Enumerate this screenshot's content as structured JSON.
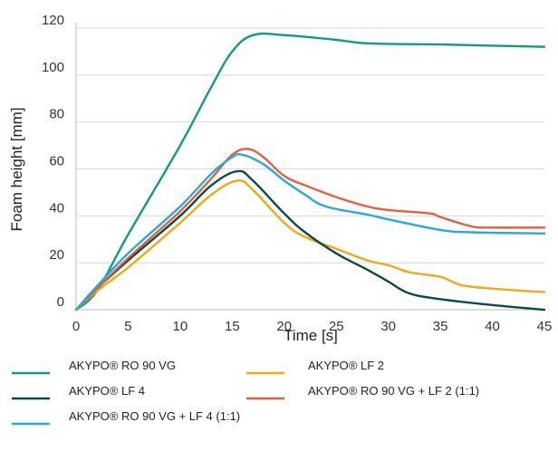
{
  "chart_data": {
    "type": "line",
    "title": "",
    "xlabel": "Time [s]",
    "ylabel": "Foam height [mm]",
    "xlim": [
      0,
      45
    ],
    "ylim": [
      0,
      120
    ],
    "x_ticks": [
      0,
      5,
      10,
      15,
      20,
      25,
      30,
      35,
      40,
      45
    ],
    "y_ticks": [
      0,
      20,
      40,
      60,
      80,
      100,
      120
    ],
    "grid": "horizontal",
    "legend_position": "bottom",
    "series": [
      {
        "name": "AKYPO® RO 90 VG",
        "color": "#129a83",
        "points": [
          [
            0,
            0
          ],
          [
            2,
            8
          ],
          [
            5,
            32
          ],
          [
            10,
            70
          ],
          [
            13,
            95
          ],
          [
            15,
            110
          ],
          [
            17,
            117
          ],
          [
            20,
            117
          ],
          [
            25,
            115
          ],
          [
            28,
            113.5
          ],
          [
            35,
            113
          ],
          [
            40,
            112.5
          ],
          [
            45,
            112
          ]
        ]
      },
      {
        "name": "AKYPO® LF 2",
        "color": "#f2a814",
        "points": [
          [
            0,
            0
          ],
          [
            2,
            8
          ],
          [
            5,
            18
          ],
          [
            10,
            37
          ],
          [
            13,
            49
          ],
          [
            15.5,
            55
          ],
          [
            17,
            51
          ],
          [
            20,
            37
          ],
          [
            22,
            31
          ],
          [
            25,
            26
          ],
          [
            28,
            21
          ],
          [
            30,
            19
          ],
          [
            32,
            16
          ],
          [
            35,
            14
          ],
          [
            37,
            10.5
          ],
          [
            40,
            9
          ],
          [
            45,
            7.5
          ]
        ]
      },
      {
        "name": "AKYPO® LF 4",
        "color": "#0b4a4a",
        "points": [
          [
            0,
            0
          ],
          [
            2,
            9
          ],
          [
            5,
            21
          ],
          [
            10,
            40
          ],
          [
            13,
            53
          ],
          [
            15.5,
            59
          ],
          [
            17,
            55
          ],
          [
            20,
            41
          ],
          [
            22,
            33
          ],
          [
            25,
            24
          ],
          [
            28,
            17
          ],
          [
            30,
            12
          ],
          [
            32,
            7
          ],
          [
            35,
            4.5
          ],
          [
            40,
            2
          ],
          [
            45,
            0
          ]
        ]
      },
      {
        "name": "AKYPO® RO 90 VG + LF 2 (1:1)",
        "color": "#e65f3f",
        "points": [
          [
            0,
            0
          ],
          [
            2,
            9
          ],
          [
            5,
            22
          ],
          [
            10,
            42
          ],
          [
            13,
            56
          ],
          [
            15,
            66
          ],
          [
            16.5,
            68.5
          ],
          [
            18,
            65
          ],
          [
            20,
            57
          ],
          [
            22,
            53
          ],
          [
            25,
            48
          ],
          [
            28,
            44
          ],
          [
            30,
            42.5
          ],
          [
            34,
            41
          ],
          [
            35,
            39.5
          ],
          [
            38,
            35.5
          ],
          [
            40,
            35
          ],
          [
            45,
            35
          ]
        ]
      },
      {
        "name": "AKYPO® RO 90 VG + LF 4 (1:1)",
        "color": "#27a9df",
        "points": [
          [
            0,
            0
          ],
          [
            2,
            10
          ],
          [
            5,
            24
          ],
          [
            10,
            44
          ],
          [
            13,
            58
          ],
          [
            15,
            65
          ],
          [
            16,
            66
          ],
          [
            18,
            62
          ],
          [
            20,
            55
          ],
          [
            22,
            49
          ],
          [
            24,
            44
          ],
          [
            28,
            40.5
          ],
          [
            30,
            38.5
          ],
          [
            35,
            34
          ],
          [
            38,
            33
          ],
          [
            45,
            32.5
          ]
        ]
      }
    ]
  }
}
